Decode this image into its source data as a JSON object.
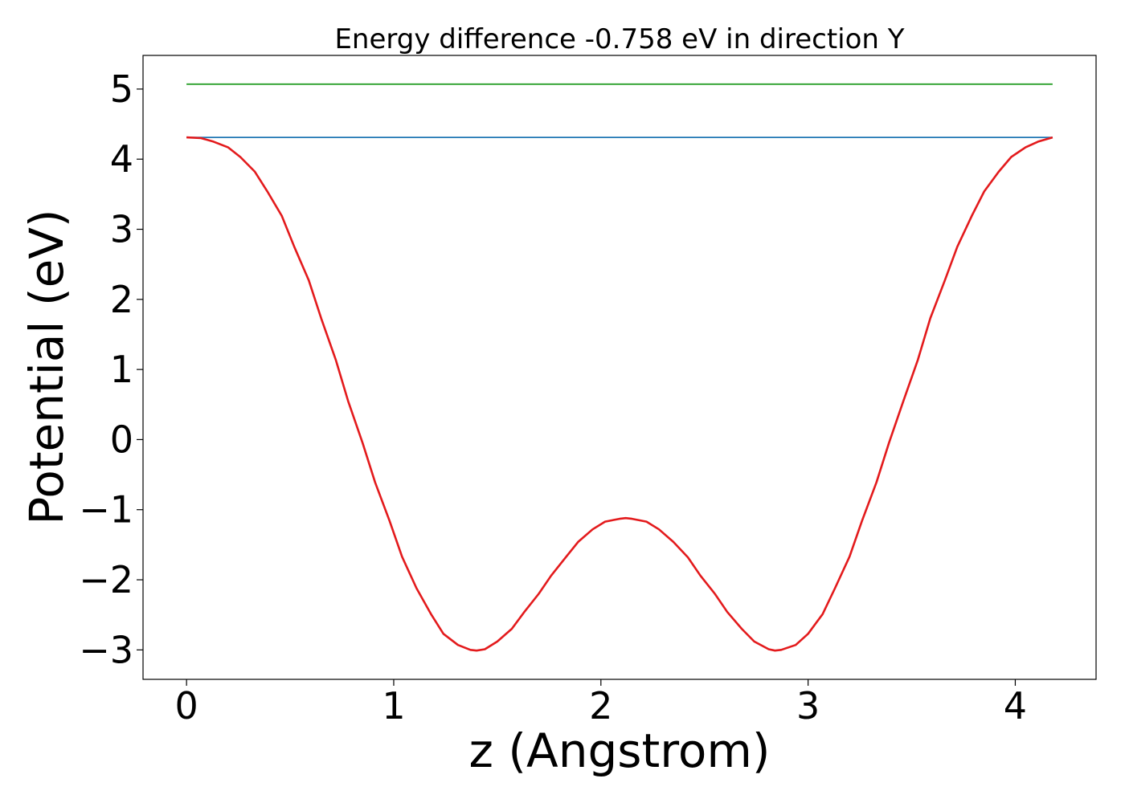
{
  "chart_data": {
    "type": "line",
    "title": "Energy difference -0.758 eV in direction Y",
    "xlabel": "z (Angstrom)",
    "ylabel": "Potential (eV)",
    "xlim": [
      -0.21,
      4.39
    ],
    "ylim": [
      -3.42,
      5.48
    ],
    "xticks": [
      0,
      1,
      2,
      3,
      4
    ],
    "yticks": [
      -3,
      -2,
      -1,
      0,
      1,
      2,
      3,
      4,
      5
    ],
    "xtick_labels": [
      "0",
      "1",
      "2",
      "3",
      "4"
    ],
    "ytick_labels": [
      "−3",
      "−2",
      "−1",
      "0",
      "1",
      "2",
      "3",
      "4",
      "5"
    ],
    "grid": false,
    "series": [
      {
        "color": "#2ca02c",
        "x": [
          0,
          4.18
        ],
        "y": [
          5.07,
          5.07
        ]
      },
      {
        "color": "#1f77b4",
        "x": [
          0,
          4.18
        ],
        "y": [
          4.31,
          4.31
        ]
      },
      {
        "color": "#e31a1c",
        "x": [
          0,
          0.07,
          0.13,
          0.2,
          0.26,
          0.33,
          0.39,
          0.46,
          0.52,
          0.59,
          0.65,
          0.72,
          0.78,
          0.85,
          0.91,
          0.98,
          1.04,
          1.11,
          1.18,
          1.24,
          1.31,
          1.37,
          1.4,
          1.44,
          1.5,
          1.57,
          1.63,
          1.7,
          1.76,
          1.83,
          1.89,
          1.96,
          2.02,
          2.09,
          2.12,
          2.15,
          2.22,
          2.28,
          2.35,
          2.42,
          2.48,
          2.55,
          2.61,
          2.68,
          2.74,
          2.81,
          2.84,
          2.87,
          2.94,
          3.0,
          3.07,
          3.13,
          3.2,
          3.26,
          3.33,
          3.39,
          3.46,
          3.53,
          3.59,
          3.66,
          3.72,
          3.79,
          3.85,
          3.92,
          3.98,
          4.05,
          4.11,
          4.18
        ],
        "y": [
          4.31,
          4.3,
          4.25,
          4.17,
          4.03,
          3.82,
          3.54,
          3.19,
          2.75,
          2.27,
          1.73,
          1.14,
          0.55,
          -0.05,
          -0.61,
          -1.16,
          -1.67,
          -2.12,
          -2.49,
          -2.77,
          -2.93,
          -3.0,
          -3.01,
          -2.99,
          -2.88,
          -2.7,
          -2.46,
          -2.2,
          -1.94,
          -1.68,
          -1.46,
          -1.28,
          -1.17,
          -1.13,
          -1.12,
          -1.13,
          -1.17,
          -1.28,
          -1.46,
          -1.68,
          -1.94,
          -2.2,
          -2.46,
          -2.7,
          -2.88,
          -2.99,
          -3.01,
          -3.0,
          -2.93,
          -2.77,
          -2.49,
          -2.12,
          -1.67,
          -1.16,
          -0.61,
          -0.05,
          0.55,
          1.14,
          1.73,
          2.27,
          2.75,
          3.19,
          3.54,
          3.82,
          4.03,
          4.17,
          4.25,
          4.31
        ]
      }
    ]
  }
}
